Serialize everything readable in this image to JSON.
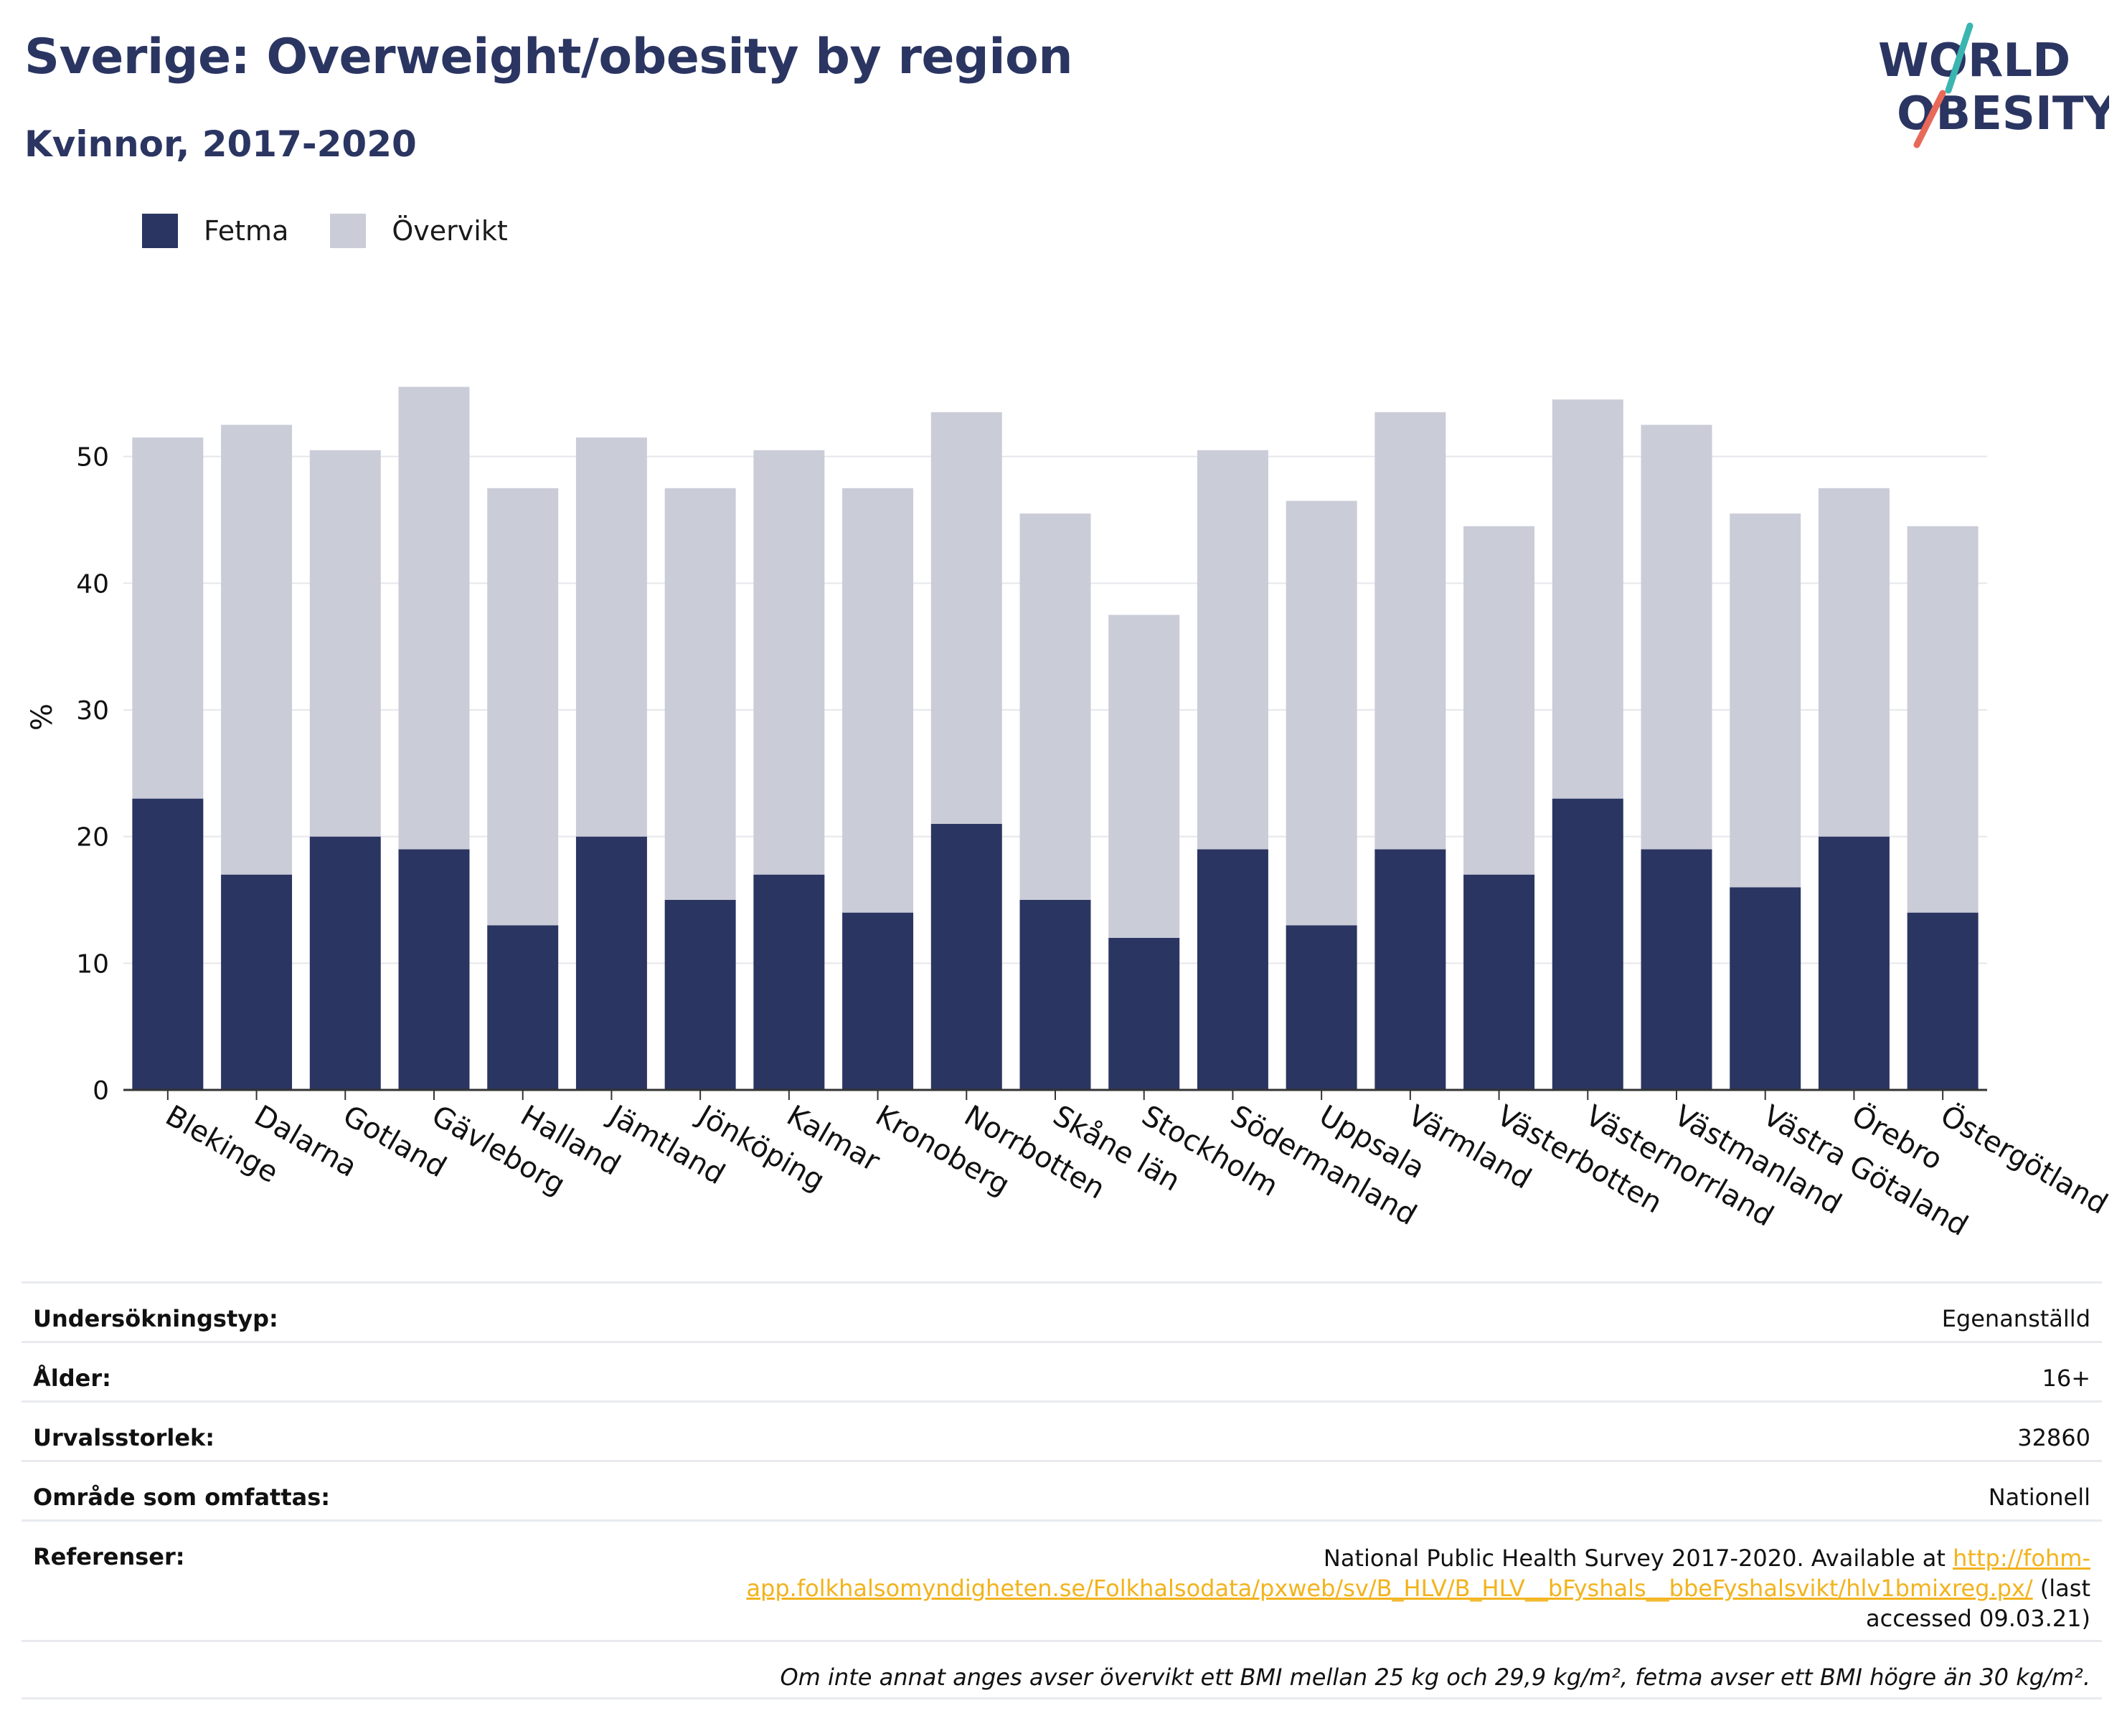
{
  "header": {
    "title": "Sverige: Overweight/obesity by region",
    "subtitle": "Kvinnor, 2017-2020",
    "logo_line1": "WORLD",
    "logo_line2": "OBESITY"
  },
  "colors": {
    "fetma": "#2b3562",
    "overvikt": "#caccd8",
    "title": "#2b3562",
    "link": "#f2b31c",
    "logo_teal": "#3ab5b0",
    "logo_coral": "#e8695a"
  },
  "chart_data": {
    "type": "bar",
    "stacked": true,
    "title": "Sverige: Overweight/obesity by region",
    "subtitle": "Kvinnor, 2017-2020",
    "xlabel": "",
    "ylabel": "%",
    "ylim": [
      0,
      60
    ],
    "yticks": [
      0,
      10,
      20,
      30,
      40,
      50
    ],
    "grid": true,
    "legend_position": "top-left",
    "categories": [
      "Blekinge",
      "Dalarna",
      "Gotland",
      "Gävleborg",
      "Halland",
      "Jämtland",
      "Jönköping",
      "Kalmar",
      "Kronoberg",
      "Norrbotten",
      "Skåne län",
      "Stockholm",
      "Södermanland",
      "Uppsala",
      "Värmland",
      "Västerbotten",
      "Västernorrland",
      "Västmanland",
      "Västra Götaland",
      "Örebro",
      "Östergötland"
    ],
    "series": [
      {
        "name": "Fetma",
        "values": [
          23,
          17,
          20,
          19,
          13,
          20,
          15,
          17,
          14,
          21,
          15,
          12,
          19,
          13,
          19,
          17,
          23,
          19,
          16,
          20,
          14
        ]
      },
      {
        "name": "Övervikt",
        "values": [
          28.5,
          35.5,
          30.5,
          36.5,
          34.5,
          31.5,
          32.5,
          33.5,
          33.5,
          32.5,
          30.5,
          25.5,
          31.5,
          33.5,
          34.5,
          27.5,
          31.5,
          33.5,
          29.5,
          27.5,
          30.5
        ]
      }
    ]
  },
  "info": {
    "rows": [
      {
        "key": "Undersökningstyp:",
        "value": "Egenanställd"
      },
      {
        "key": "Ålder:",
        "value": "16+"
      },
      {
        "key": "Urvalsstorlek:",
        "value": "32860"
      },
      {
        "key": "Område som omfattas:",
        "value": "Nationell"
      }
    ],
    "references_key": "Referenser:",
    "references_pre": "National Public Health Survey 2017-2020. Available at ",
    "references_link": "http://fohm-app.folkhalsomyndigheten.se/Folkhalsodata/pxweb/sv/B_HLV/B_HLV__bFyshals__bbeFyshalsvikt/hlv1bmixreg.px/",
    "references_post": " (last accessed 09.03.21)",
    "note": "Om inte annat anges avser övervikt ett BMI mellan 25 kg och 29,9 kg/m², fetma avser ett BMI högre än 30 kg/m²."
  }
}
